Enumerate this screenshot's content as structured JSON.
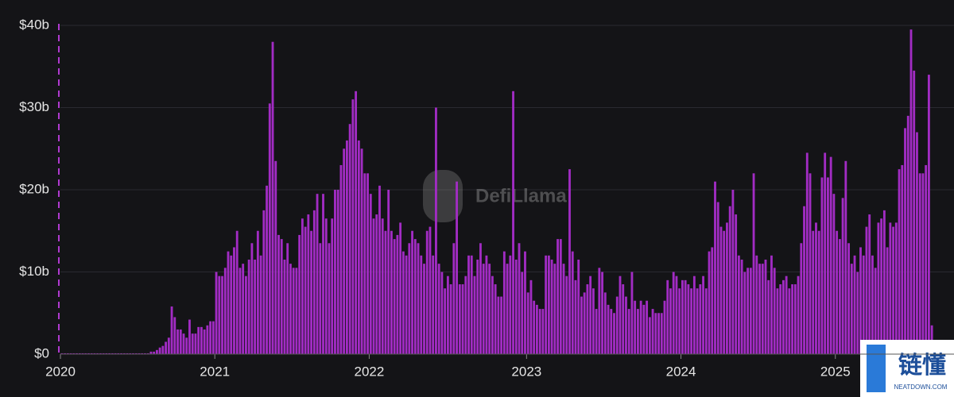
{
  "chart_data": {
    "type": "bar",
    "watermark": "DefiLlama",
    "logo": {
      "text": "链懂",
      "subtext": "NEATDOWN.COM"
    },
    "color": "#a22cc4",
    "grid": true,
    "ylim": [
      0,
      40
    ],
    "yticks": [
      {
        "value": 0,
        "label": "$0"
      },
      {
        "value": 10,
        "label": "$10b"
      },
      {
        "value": 20,
        "label": "$20b"
      },
      {
        "value": 30,
        "label": "$30b"
      },
      {
        "value": 40,
        "label": "$40b"
      }
    ],
    "categories": [
      "2020",
      null,
      null,
      null,
      null,
      null,
      null,
      null,
      null,
      null,
      null,
      null,
      null,
      null,
      null,
      null,
      null,
      null,
      null,
      null,
      null,
      null,
      null,
      null,
      null,
      null,
      null,
      null,
      null,
      null,
      null,
      null,
      null,
      null,
      null,
      null,
      null,
      null,
      null,
      null,
      null,
      null,
      null,
      null,
      null,
      null,
      null,
      null,
      null,
      null,
      null,
      null,
      "2021",
      null,
      null,
      null,
      null,
      null,
      null,
      null,
      null,
      null,
      null,
      null,
      null,
      null,
      null,
      null,
      null,
      null,
      null,
      null,
      null,
      null,
      null,
      null,
      null,
      null,
      null,
      null,
      null,
      null,
      null,
      null,
      null,
      null,
      null,
      null,
      null,
      null,
      null,
      null,
      null,
      null,
      null,
      null,
      null,
      null,
      null,
      null,
      null,
      null,
      null,
      null,
      "2022",
      null,
      null,
      null,
      null,
      null,
      null,
      null,
      null,
      null,
      null,
      null,
      null,
      null,
      null,
      null,
      null,
      null,
      null,
      null,
      null,
      null,
      null,
      null,
      null,
      null,
      null,
      null,
      null,
      null,
      null,
      null,
      null,
      null,
      null,
      null,
      null,
      null,
      null,
      null,
      null,
      null,
      null,
      null,
      null,
      null,
      null,
      null,
      null,
      null,
      null,
      null,
      null,
      "2023",
      null,
      null,
      null,
      null,
      null,
      null,
      null,
      null,
      null,
      null,
      null,
      null,
      null,
      null,
      null,
      null,
      null,
      null,
      null,
      null,
      null,
      null,
      null,
      null,
      null,
      null,
      null,
      null,
      null,
      null,
      null,
      null,
      null,
      null,
      null,
      null,
      null,
      null,
      null,
      null,
      null,
      null,
      null,
      null,
      null,
      null,
      null,
      null,
      null,
      null,
      null,
      "2024",
      null,
      null,
      null,
      null,
      null,
      null,
      null,
      null,
      null,
      null,
      null,
      null,
      null,
      null,
      null,
      null,
      null,
      null,
      null,
      null,
      null,
      null,
      null,
      null,
      null,
      null,
      null,
      null,
      null,
      null,
      null,
      null,
      null,
      null,
      null,
      null,
      null,
      null,
      null,
      null,
      null,
      null,
      null,
      null,
      null,
      null,
      null,
      null,
      null,
      null,
      null,
      "2025",
      null,
      null,
      null,
      null,
      null,
      null,
      null,
      null,
      null,
      null,
      null,
      null,
      null,
      null,
      null,
      null,
      null,
      null,
      null,
      null,
      null,
      null,
      null,
      null,
      null,
      null,
      null,
      null,
      null,
      null,
      null,
      null
    ],
    "values": [
      0.1,
      0.1,
      0.1,
      0.1,
      0.1,
      0.1,
      0.1,
      0.1,
      0.1,
      0.1,
      0.1,
      0.1,
      0.1,
      0.1,
      0.1,
      0.1,
      0.1,
      0.1,
      0.1,
      0.1,
      0.1,
      0.1,
      0.1,
      0.1,
      0.1,
      0.1,
      0.1,
      0.1,
      0.1,
      0.1,
      0.3,
      0.3,
      0.5,
      0.8,
      1,
      1.5,
      2,
      5.8,
      4.5,
      3,
      3,
      2.5,
      2,
      4.2,
      2.5,
      2.5,
      3.3,
      3.3,
      3,
      3.5,
      4,
      4,
      10,
      9.5,
      9.5,
      10.5,
      12.5,
      12,
      13,
      15,
      10.5,
      11,
      9.5,
      11.5,
      13.5,
      11.5,
      15,
      12,
      17.5,
      20.5,
      30.5,
      38,
      23.5,
      14.5,
      14,
      11.5,
      13.5,
      11,
      10.5,
      10.5,
      14.5,
      16.5,
      15.5,
      17,
      15,
      17.5,
      19.5,
      13.5,
      19.5,
      16.5,
      13.5,
      16.5,
      20,
      20,
      23,
      25,
      26,
      28,
      31,
      32,
      26,
      25,
      22,
      22,
      19.5,
      16.5,
      17,
      20.5,
      16.5,
      15,
      20,
      15,
      14,
      14.5,
      16,
      12.5,
      12,
      13.5,
      15,
      14,
      13.5,
      12,
      11,
      15,
      15.5,
      12,
      30,
      11,
      10,
      8,
      9.5,
      8.5,
      13.5,
      21,
      8.5,
      8.5,
      9.5,
      12,
      12,
      9.5,
      11.5,
      13.5,
      11,
      12,
      11,
      9.5,
      8.5,
      7,
      7,
      12.5,
      11,
      12,
      32,
      11.5,
      13.5,
      10,
      12.5,
      7.5,
      9,
      6.5,
      6,
      5.5,
      5.5,
      12,
      12,
      11.5,
      11,
      14,
      14,
      11,
      9.5,
      22.5,
      12.5,
      9,
      11.5,
      7,
      7.5,
      8.5,
      9.5,
      8,
      5.5,
      10.5,
      10,
      7.5,
      6,
      5.5,
      5,
      7,
      9.5,
      8.5,
      7,
      5.5,
      10,
      6.5,
      5.5,
      6.5,
      6,
      6.5,
      4.5,
      5.5,
      5,
      5,
      5,
      6.5,
      9,
      8,
      10,
      9.5,
      8,
      9,
      9,
      8.5,
      8,
      9.5,
      8,
      8.5,
      9.5,
      8,
      12.5,
      13,
      21,
      18.5,
      15.5,
      15,
      16,
      18,
      20,
      17,
      12,
      11.5,
      10,
      10.5,
      10.5,
      22,
      12,
      11,
      11,
      11.5,
      9,
      12,
      10.5,
      8,
      8.5,
      9,
      9.5,
      8,
      8.5,
      8.5,
      9.5,
      13.5,
      18,
      24.5,
      22,
      15,
      16,
      15,
      21.5,
      24.5,
      21.5,
      24,
      19.5,
      15,
      14,
      19,
      23.5,
      13.5,
      11,
      12,
      10,
      13,
      12,
      15.5,
      17,
      12,
      10.5,
      16,
      16.5,
      17.5,
      13,
      16,
      15.5,
      16,
      22.5,
      23,
      27.5,
      29,
      39.5,
      34.5,
      27,
      22,
      22,
      23,
      34,
      3.5
    ]
  }
}
